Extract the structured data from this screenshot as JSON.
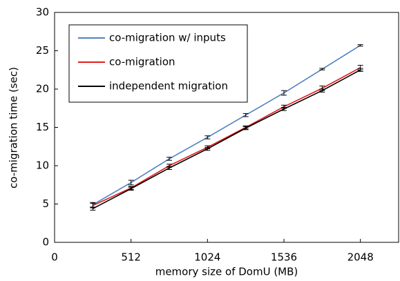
{
  "chart_data": {
    "type": "line",
    "x_label": "memory size of DomU (MB)",
    "y_label": "co-migration time (sec)",
    "x": [
      256,
      512,
      768,
      1024,
      1280,
      1536,
      1792,
      2048
    ],
    "series": [
      {
        "name": "co-migration w/ inputs",
        "color": "#4f81bd",
        "values": [
          4.9,
          7.8,
          10.9,
          13.7,
          16.6,
          19.5,
          22.6,
          25.7
        ],
        "errors": [
          0.3,
          0.3,
          0.2,
          0.2,
          0.2,
          0.3,
          0.1,
          0.1
        ]
      },
      {
        "name": "co-migration",
        "color": "#e41a1c",
        "values": [
          4.8,
          7.1,
          10.0,
          12.4,
          15.0,
          17.7,
          20.1,
          22.8
        ],
        "errors": [
          0.3,
          0.2,
          0.2,
          0.2,
          0.2,
          0.2,
          0.3,
          0.3
        ]
      },
      {
        "name": "independent migration",
        "color": "#000000",
        "values": [
          4.4,
          7.0,
          9.7,
          12.2,
          14.9,
          17.4,
          19.8,
          22.5
        ],
        "errors": [
          0.2,
          0.2,
          0.2,
          0.2,
          0.2,
          0.2,
          0.2,
          0.2
        ]
      }
    ],
    "xlim": [
      0,
      2304
    ],
    "xticks": [
      0,
      512,
      1024,
      1536,
      2048
    ],
    "ylim": [
      0,
      30
    ],
    "yticks": [
      0,
      5,
      10,
      15,
      20,
      25,
      30
    ],
    "legend": "upper left"
  }
}
